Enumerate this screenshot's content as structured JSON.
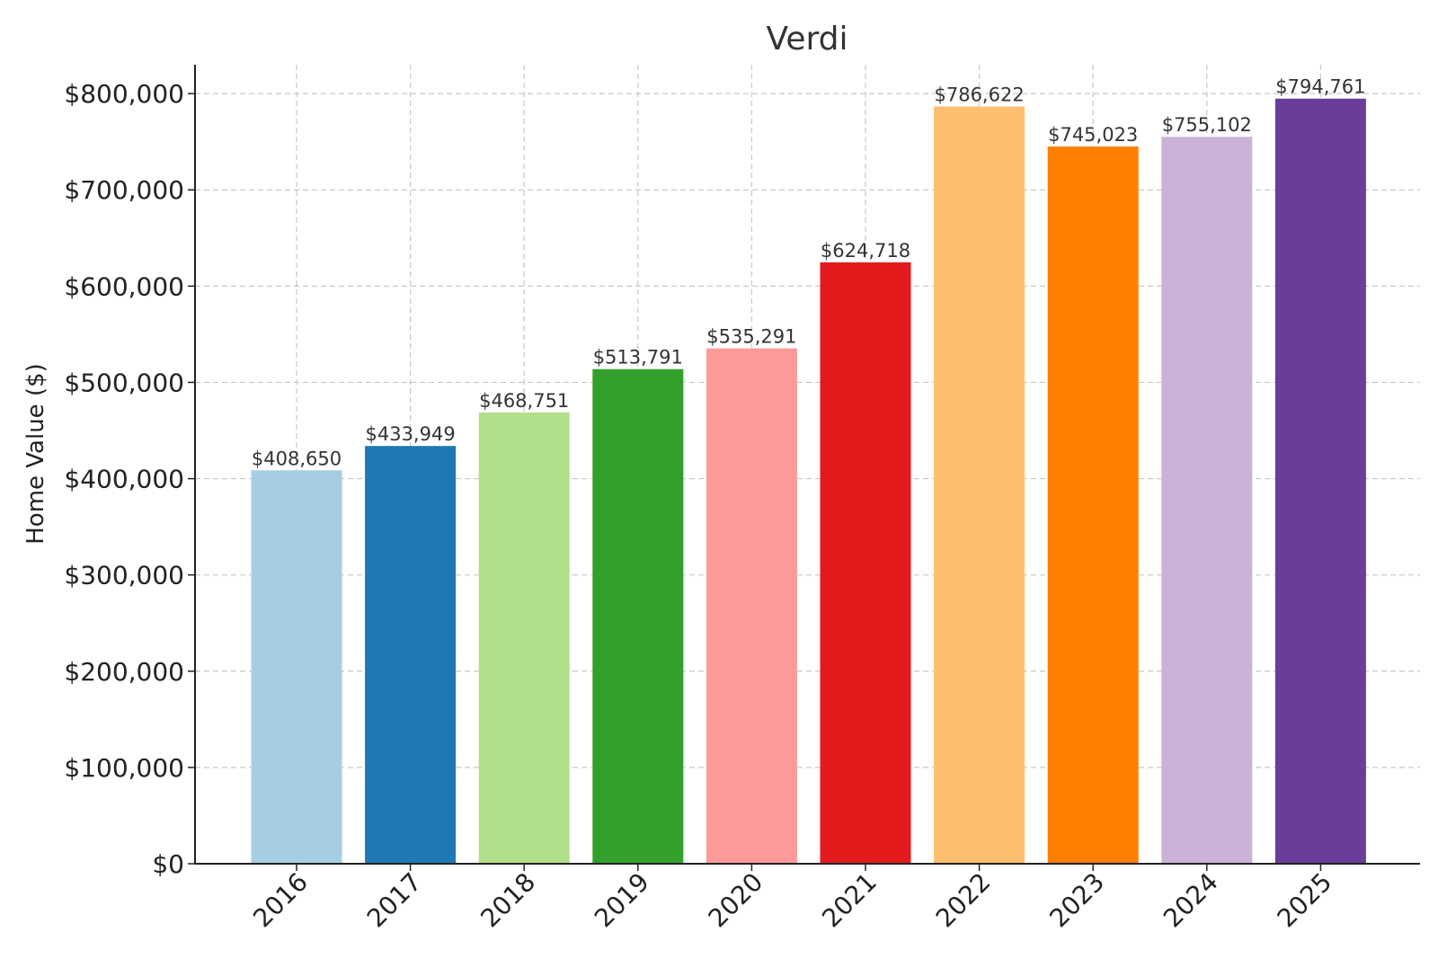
{
  "chart_data": {
    "type": "bar",
    "title": "Verdi",
    "xlabel": "",
    "ylabel": "Home Value ($)",
    "ylim": [
      0,
      830000
    ],
    "yticks": [
      0,
      100000,
      200000,
      300000,
      400000,
      500000,
      600000,
      700000,
      800000
    ],
    "ytick_labels": [
      "$0",
      "$100,000",
      "$200,000",
      "$300,000",
      "$400,000",
      "$500,000",
      "$600,000",
      "$700,000",
      "$800,000"
    ],
    "grid": true,
    "categories": [
      "2016",
      "2017",
      "2018",
      "2019",
      "2020",
      "2021",
      "2022",
      "2023",
      "2024",
      "2025"
    ],
    "values": [
      408650,
      433949,
      468751,
      513791,
      535291,
      624718,
      786622,
      745023,
      755102,
      794761
    ],
    "value_labels": [
      "$408,650",
      "$433,949",
      "$468,751",
      "$513,791",
      "$535,291",
      "$624,718",
      "$786,622",
      "$745,023",
      "$755,102",
      "$794,761"
    ],
    "colors": [
      "#a6cee3",
      "#1f78b4",
      "#b2df8a",
      "#33a02c",
      "#fb9a99",
      "#e31a1c",
      "#fdbf6f",
      "#ff7f00",
      "#cab2d6",
      "#6a3d9a"
    ]
  }
}
